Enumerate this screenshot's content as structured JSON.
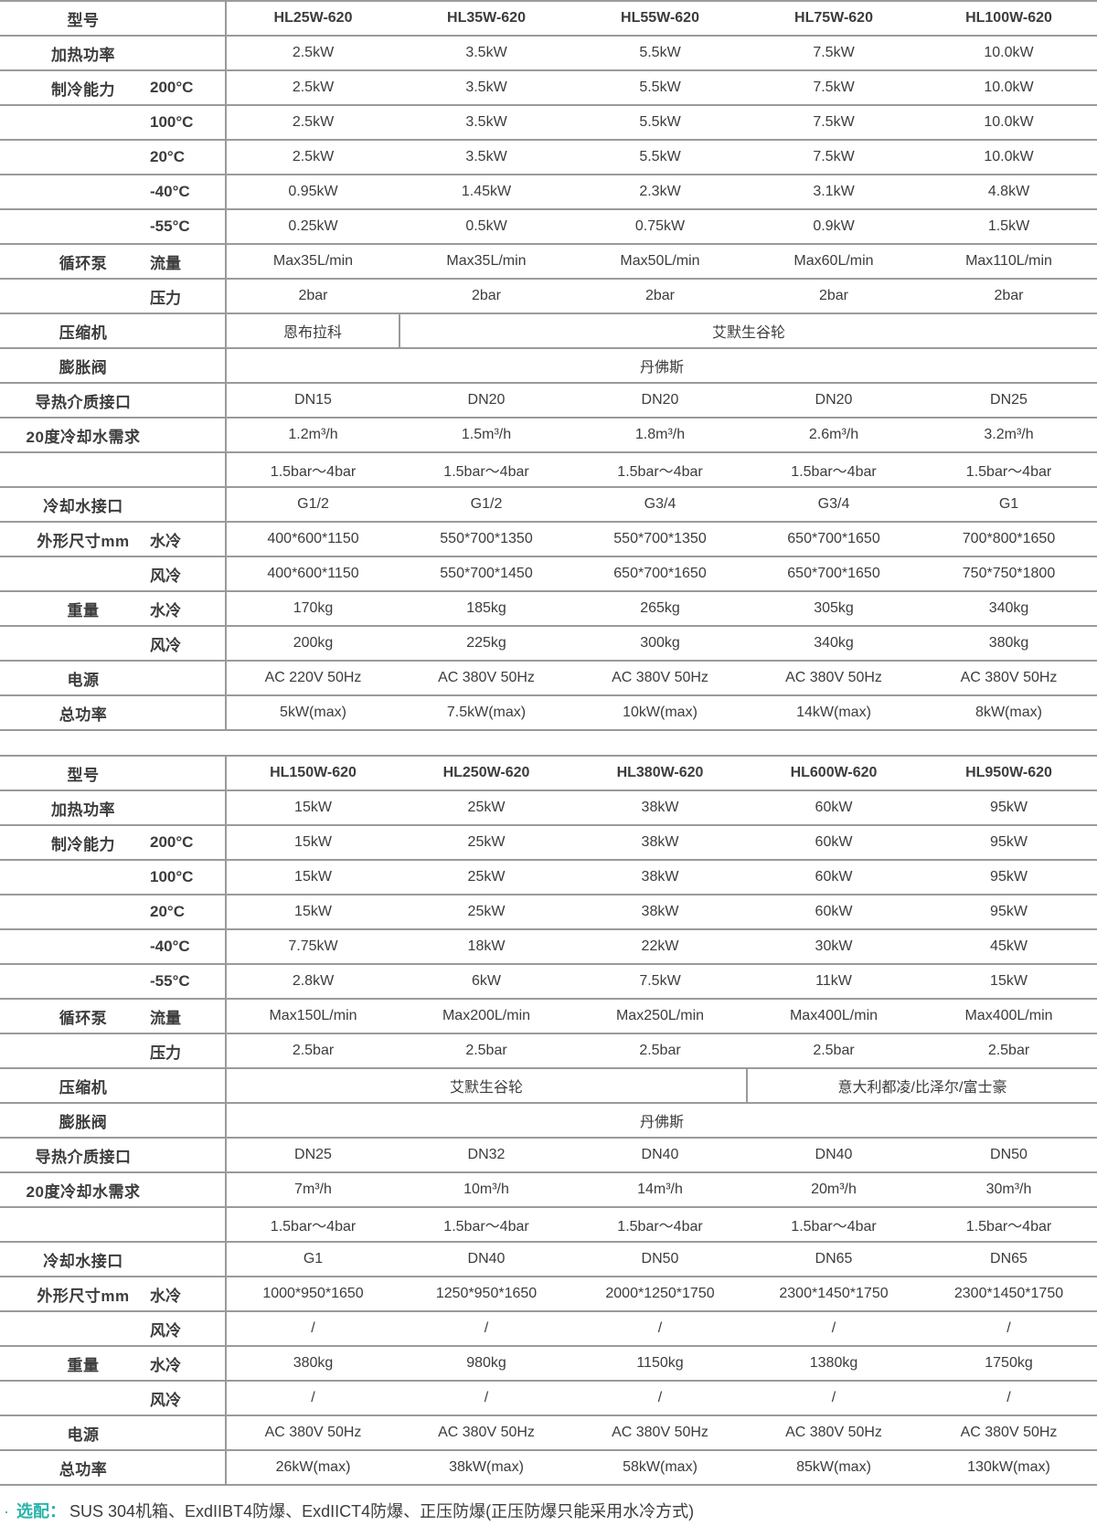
{
  "accent_color": "#29b3ab",
  "text_color": "#3c3c3e",
  "border_color": "#9a9a9c",
  "tables": [
    {
      "header_label": "型号",
      "models": [
        "HL25W-620",
        "HL35W-620",
        "HL55W-620",
        "HL75W-620",
        "HL100W-620"
      ],
      "rows": [
        {
          "label": "加热功率",
          "sub": "",
          "values": [
            "2.5kW",
            "3.5kW",
            "5.5kW",
            "7.5kW",
            "10.0kW"
          ]
        },
        {
          "label": "制冷能力",
          "sub": "200°C",
          "values": [
            "2.5kW",
            "3.5kW",
            "5.5kW",
            "7.5kW",
            "10.0kW"
          ]
        },
        {
          "label": "",
          "sub": "100°C",
          "values": [
            "2.5kW",
            "3.5kW",
            "5.5kW",
            "7.5kW",
            "10.0kW"
          ]
        },
        {
          "label": "",
          "sub": "20°C",
          "values": [
            "2.5kW",
            "3.5kW",
            "5.5kW",
            "7.5kW",
            "10.0kW"
          ]
        },
        {
          "label": "",
          "sub": "-40°C",
          "values": [
            "0.95kW",
            "1.45kW",
            "2.3kW",
            "3.1kW",
            "4.8kW"
          ]
        },
        {
          "label": "",
          "sub": "-55°C",
          "values": [
            "0.25kW",
            "0.5kW",
            "0.75kW",
            "0.9kW",
            "1.5kW"
          ]
        },
        {
          "label": "循环泵",
          "sub": "流量",
          "values": [
            "Max35L/min",
            "Max35L/min",
            "Max50L/min",
            "Max60L/min",
            "Max110L/min"
          ]
        },
        {
          "label": "",
          "sub": "压力",
          "values": [
            "2bar",
            "2bar",
            "2bar",
            "2bar",
            "2bar"
          ]
        },
        {
          "label": "压缩机",
          "sub": "",
          "merged": [
            {
              "span": 1,
              "text": "恩布拉科"
            },
            {
              "span": 4,
              "text": "艾默生谷轮"
            }
          ]
        },
        {
          "label": "膨胀阀",
          "sub": "",
          "merged": [
            {
              "span": 5,
              "text": "丹佛斯"
            }
          ]
        },
        {
          "label": "导热介质接口",
          "sub": "",
          "values": [
            "DN15",
            "DN20",
            "DN20",
            "DN20",
            "DN25"
          ]
        },
        {
          "label": "20度冷却水需求",
          "sub": "",
          "values": [
            "1.2m³/h",
            "1.5m³/h",
            "1.8m³/h",
            "2.6m³/h",
            "3.2m³/h"
          ]
        },
        {
          "label": "",
          "sub": "",
          "values": [
            "1.5bar～4bar",
            "1.5bar～4bar",
            "1.5bar～4bar",
            "1.5bar～4bar",
            "1.5bar～4bar"
          ]
        },
        {
          "label": "冷却水接口",
          "sub": "",
          "values": [
            "G1/2",
            "G1/2",
            "G3/4",
            "G3/4",
            "G1"
          ]
        },
        {
          "label": "外形尺寸mm",
          "sub": "水冷",
          "values": [
            "400*600*1150",
            "550*700*1350",
            "550*700*1350",
            "650*700*1650",
            "700*800*1650"
          ]
        },
        {
          "label": "",
          "sub": "风冷",
          "values": [
            "400*600*1150",
            "550*700*1450",
            "650*700*1650",
            "650*700*1650",
            "750*750*1800"
          ]
        },
        {
          "label": "重量",
          "sub": "水冷",
          "values": [
            "170kg",
            "185kg",
            "265kg",
            "305kg",
            "340kg"
          ]
        },
        {
          "label": "",
          "sub": "风冷",
          "values": [
            "200kg",
            "225kg",
            "300kg",
            "340kg",
            "380kg"
          ]
        },
        {
          "label": "电源",
          "sub": "",
          "values": [
            "AC 220V 50Hz",
            "AC 380V 50Hz",
            "AC 380V 50Hz",
            "AC 380V 50Hz",
            "AC 380V 50Hz"
          ]
        },
        {
          "label": "总功率",
          "sub": "",
          "values": [
            "5kW(max)",
            "7.5kW(max)",
            "10kW(max)",
            "14kW(max)",
            "8kW(max)"
          ]
        }
      ]
    },
    {
      "header_label": "型号",
      "models": [
        "HL150W-620",
        "HL250W-620",
        "HL380W-620",
        "HL600W-620",
        "HL950W-620"
      ],
      "rows": [
        {
          "label": "加热功率",
          "sub": "",
          "values": [
            "15kW",
            "25kW",
            "38kW",
            "60kW",
            "95kW"
          ]
        },
        {
          "label": "制冷能力",
          "sub": "200°C",
          "values": [
            "15kW",
            "25kW",
            "38kW",
            "60kW",
            "95kW"
          ]
        },
        {
          "label": "",
          "sub": "100°C",
          "values": [
            "15kW",
            "25kW",
            "38kW",
            "60kW",
            "95kW"
          ]
        },
        {
          "label": "",
          "sub": "20°C",
          "values": [
            "15kW",
            "25kW",
            "38kW",
            "60kW",
            "95kW"
          ]
        },
        {
          "label": "",
          "sub": "-40°C",
          "values": [
            "7.75kW",
            "18kW",
            "22kW",
            "30kW",
            "45kW"
          ]
        },
        {
          "label": "",
          "sub": "-55°C",
          "values": [
            "2.8kW",
            "6kW",
            "7.5kW",
            "11kW",
            "15kW"
          ]
        },
        {
          "label": "循环泵",
          "sub": "流量",
          "values": [
            "Max150L/min",
            "Max200L/min",
            "Max250L/min",
            "Max400L/min",
            "Max400L/min"
          ]
        },
        {
          "label": "",
          "sub": "压力",
          "values": [
            "2.5bar",
            "2.5bar",
            "2.5bar",
            "2.5bar",
            "2.5bar"
          ]
        },
        {
          "label": "压缩机",
          "sub": "",
          "merged": [
            {
              "span": 3,
              "text": "艾默生谷轮"
            },
            {
              "span": 2,
              "text": "意大利都凌/比泽尔/富士豪"
            }
          ]
        },
        {
          "label": "膨胀阀",
          "sub": "",
          "merged": [
            {
              "span": 5,
              "text": "丹佛斯"
            }
          ]
        },
        {
          "label": "导热介质接口",
          "sub": "",
          "values": [
            "DN25",
            "DN32",
            "DN40",
            "DN40",
            "DN50"
          ]
        },
        {
          "label": "20度冷却水需求",
          "sub": "",
          "values": [
            "7m³/h",
            "10m³/h",
            "14m³/h",
            "20m³/h",
            "30m³/h"
          ]
        },
        {
          "label": "",
          "sub": "",
          "values": [
            "1.5bar～4bar",
            "1.5bar～4bar",
            "1.5bar～4bar",
            "1.5bar～4bar",
            "1.5bar～4bar"
          ]
        },
        {
          "label": "冷却水接口",
          "sub": "",
          "values": [
            "G1",
            "DN40",
            "DN50",
            "DN65",
            "DN65"
          ]
        },
        {
          "label": "外形尺寸mm",
          "sub": "水冷",
          "values": [
            "1000*950*1650",
            "1250*950*1650",
            "2000*1250*1750",
            "2300*1450*1750",
            "2300*1450*1750"
          ]
        },
        {
          "label": "",
          "sub": "风冷",
          "values": [
            "/",
            "/",
            "/",
            "/",
            "/"
          ]
        },
        {
          "label": "重量",
          "sub": "水冷",
          "values": [
            "380kg",
            "980kg",
            "1150kg",
            "1380kg",
            "1750kg"
          ]
        },
        {
          "label": "",
          "sub": "风冷",
          "values": [
            "/",
            "/",
            "/",
            "/",
            "/"
          ]
        },
        {
          "label": "电源",
          "sub": "",
          "values": [
            "AC 380V 50Hz",
            "AC 380V 50Hz",
            "AC 380V 50Hz",
            "AC 380V 50Hz",
            "AC 380V 50Hz"
          ]
        },
        {
          "label": "总功率",
          "sub": "",
          "values": [
            "26kW(max)",
            "38kW(max)",
            "58kW(max)",
            "85kW(max)",
            "130kW(max)"
          ]
        }
      ]
    }
  ],
  "footnote": {
    "bullet": "·",
    "label": "选配：",
    "text": "SUS 304机箱、ExdIIBT4防爆、ExdIICT4防爆、正压防爆(正压防爆只能采用水冷方式)"
  }
}
